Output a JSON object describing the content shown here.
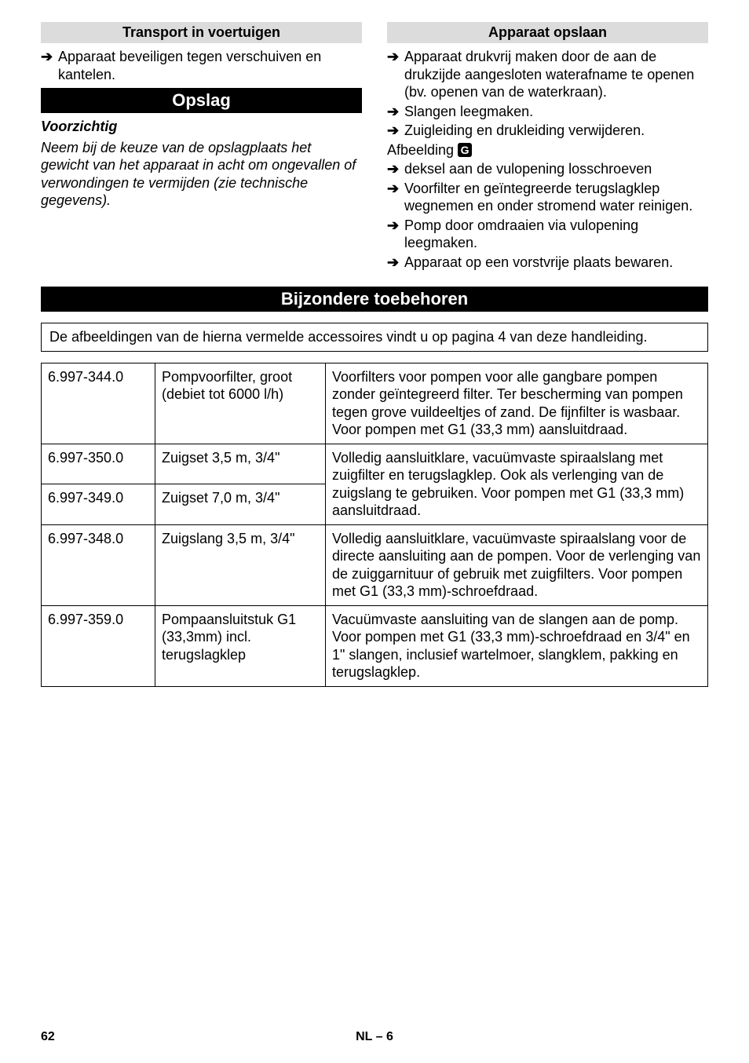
{
  "left": {
    "heading_transport": "Transport in voertuigen",
    "bullet_transport": "Apparaat beveiligen tegen verschuiven en kantelen.",
    "heading_opslag": "Opslag",
    "voorzichtig_label": "Voorzichtig",
    "voorzichtig_text": "Neem bij de keuze van de opslagplaats het gewicht van het apparaat in acht om ongevallen of verwondingen te vermijden (zie technische gegevens)."
  },
  "right": {
    "heading_apparaat": "Apparaat opslaan",
    "bullets_a": [
      "Apparaat drukvrij maken door de aan de drukzijde aangesloten waterafname te openen (bv. openen van de waterkraan).",
      "Slangen leegmaken.",
      "Zuigleiding en drukleiding verwijderen."
    ],
    "afbeelding_label": "Afbeelding",
    "afbeelding_letter": "G",
    "bullets_b": [
      "deksel aan de vulopening losschroeven",
      "Voorfilter en geïntegreerde terugslagklep wegnemen en onder stromend water reinigen.",
      "Pomp door omdraaien via vulopening leegmaken.",
      "Apparaat op een vorstvrije plaats bewaren."
    ]
  },
  "section_heading": "Bijzondere toebehoren",
  "boxed_note": "De afbeeldingen van de hierna vermelde accessoires vindt u op pagina 4 van deze handleiding.",
  "table": {
    "rows": [
      {
        "c0": "6.997-344.0",
        "c1": "Pompvoorfilter, groot (debiet tot 6000 l/h)",
        "c2": "Voorfilters voor pompen voor alle gangbare pompen zonder geïntegreerd filter. Ter bescherming van pompen tegen grove vuildeeltjes of zand. De fijnfilter is wasbaar. Voor pompen met G1 (33,3 mm) aansluitdraad."
      },
      {
        "c0": "6.997-350.0",
        "c1": "Zuigset 3,5 m, 3/4\"",
        "c2": "Volledig aansluitklare, vacuümvaste spiraalslang met zuigfilter en terugslagklep. Ook als verlenging van de zuigslang te gebruiken. Voor pompen met G1 (33,3 mm) aansluitdraad."
      },
      {
        "c0": "6.997-349.0",
        "c1": "Zuigset 7,0 m, 3/4\"",
        "c2": ""
      },
      {
        "c0": "6.997-348.0",
        "c1": "Zuigslang 3,5 m, 3/4\"",
        "c2": "Volledig aansluitklare, vacuümvaste spiraalslang voor de directe aansluiting aan de pompen. Voor de verlenging van de zuiggarnituur of gebruik met zuigfilters. Voor pompen met G1 (33,3 mm)-schroefdraad."
      },
      {
        "c0": "6.997-359.0",
        "c1": "Pompaansluitstuk G1 (33,3mm) incl. terugslagklep",
        "c2": "Vacuümvaste aansluiting van de slangen aan de pomp.\nVoor pompen met G1 (33,3 mm)-schroefdraad en 3/4\" en 1\" slangen, inclusief wartelmoer, slangklem, pakking en terugslagklep."
      }
    ]
  },
  "footer": {
    "page_number": "62",
    "lang_page": "NL – 6"
  }
}
